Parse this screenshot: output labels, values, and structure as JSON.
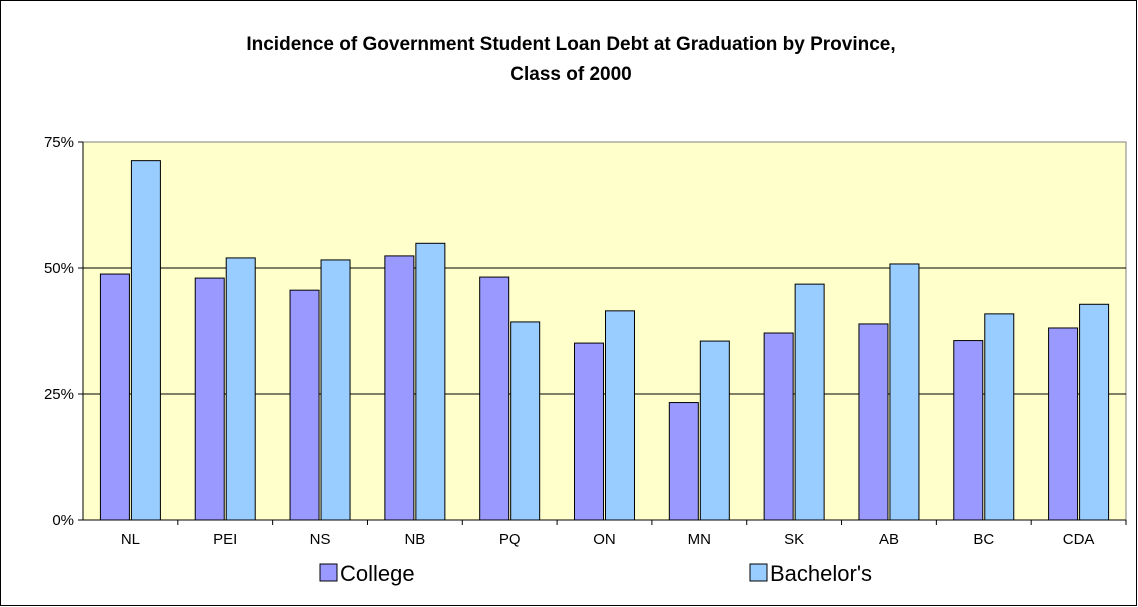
{
  "chart_data": {
    "type": "bar",
    "title": "Incidence of Government Student Loan Debt at Graduation by Province,",
    "subtitle": "Class of 2000",
    "categories": [
      "NL",
      "PEI",
      "NS",
      "NB",
      "PQ",
      "ON",
      "MN",
      "SK",
      "AB",
      "BC",
      "CDA"
    ],
    "series": [
      {
        "name": "College",
        "values": [
          48.8,
          48.0,
          45.6,
          52.4,
          48.2,
          35.1,
          23.3,
          37.1,
          38.9,
          35.6,
          38.1
        ],
        "color": "#9999ff"
      },
      {
        "name": "Bachelor's",
        "values": [
          71.3,
          52.0,
          51.6,
          54.9,
          39.3,
          41.5,
          35.5,
          46.8,
          50.8,
          40.9,
          42.8
        ],
        "color": "#99ccff"
      }
    ],
    "yticks": [
      "0%",
      "25%",
      "50%",
      "75%"
    ],
    "ytick_values": [
      0,
      25,
      50,
      75
    ],
    "ylim": [
      0,
      75
    ],
    "grid": true,
    "plot_background": "#ffffcc",
    "legend_position": "bottom"
  }
}
